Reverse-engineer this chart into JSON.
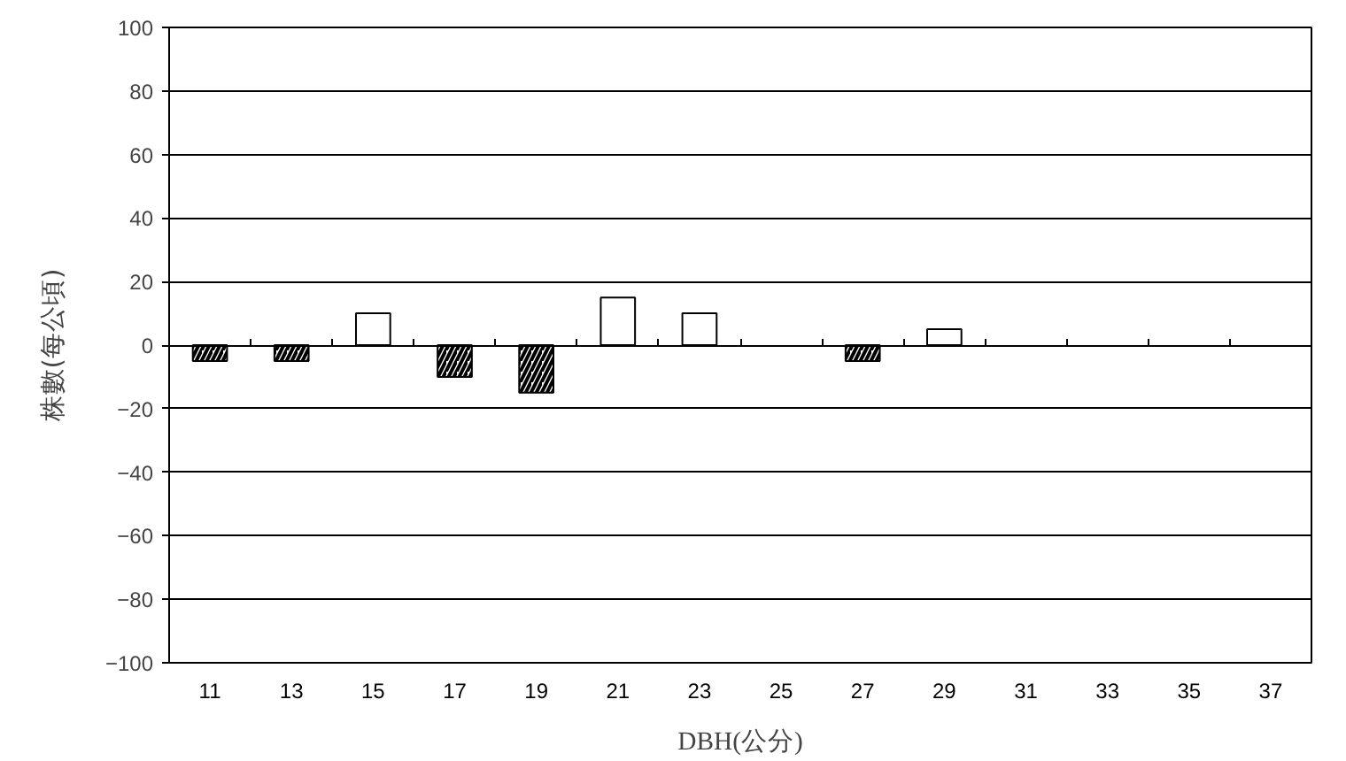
{
  "chart_data": {
    "type": "bar",
    "xlabel": "DBH(公分)",
    "ylabel": "株數(每公頃)",
    "categories": [
      "11",
      "13",
      "15",
      "17",
      "19",
      "21",
      "23",
      "25",
      "27",
      "29",
      "31",
      "33",
      "35",
      "37"
    ],
    "values": [
      -5,
      -5,
      10,
      -10,
      -15,
      15,
      10,
      0,
      -5,
      5,
      0,
      0,
      0,
      0
    ],
    "colors": [
      "#000000",
      "#000000",
      "#ffffff",
      "#000000",
      "#000000",
      "#ffffff",
      "#ffffff",
      "#ffffff",
      "#000000",
      "#ffffff",
      "#ffffff",
      "#ffffff",
      "#ffffff",
      "#ffffff"
    ],
    "ylim": [
      -100,
      100
    ],
    "yticks": [
      -100,
      -80,
      -60,
      -40,
      -20,
      0,
      20,
      40,
      60,
      80,
      100
    ],
    "grid": "y"
  }
}
